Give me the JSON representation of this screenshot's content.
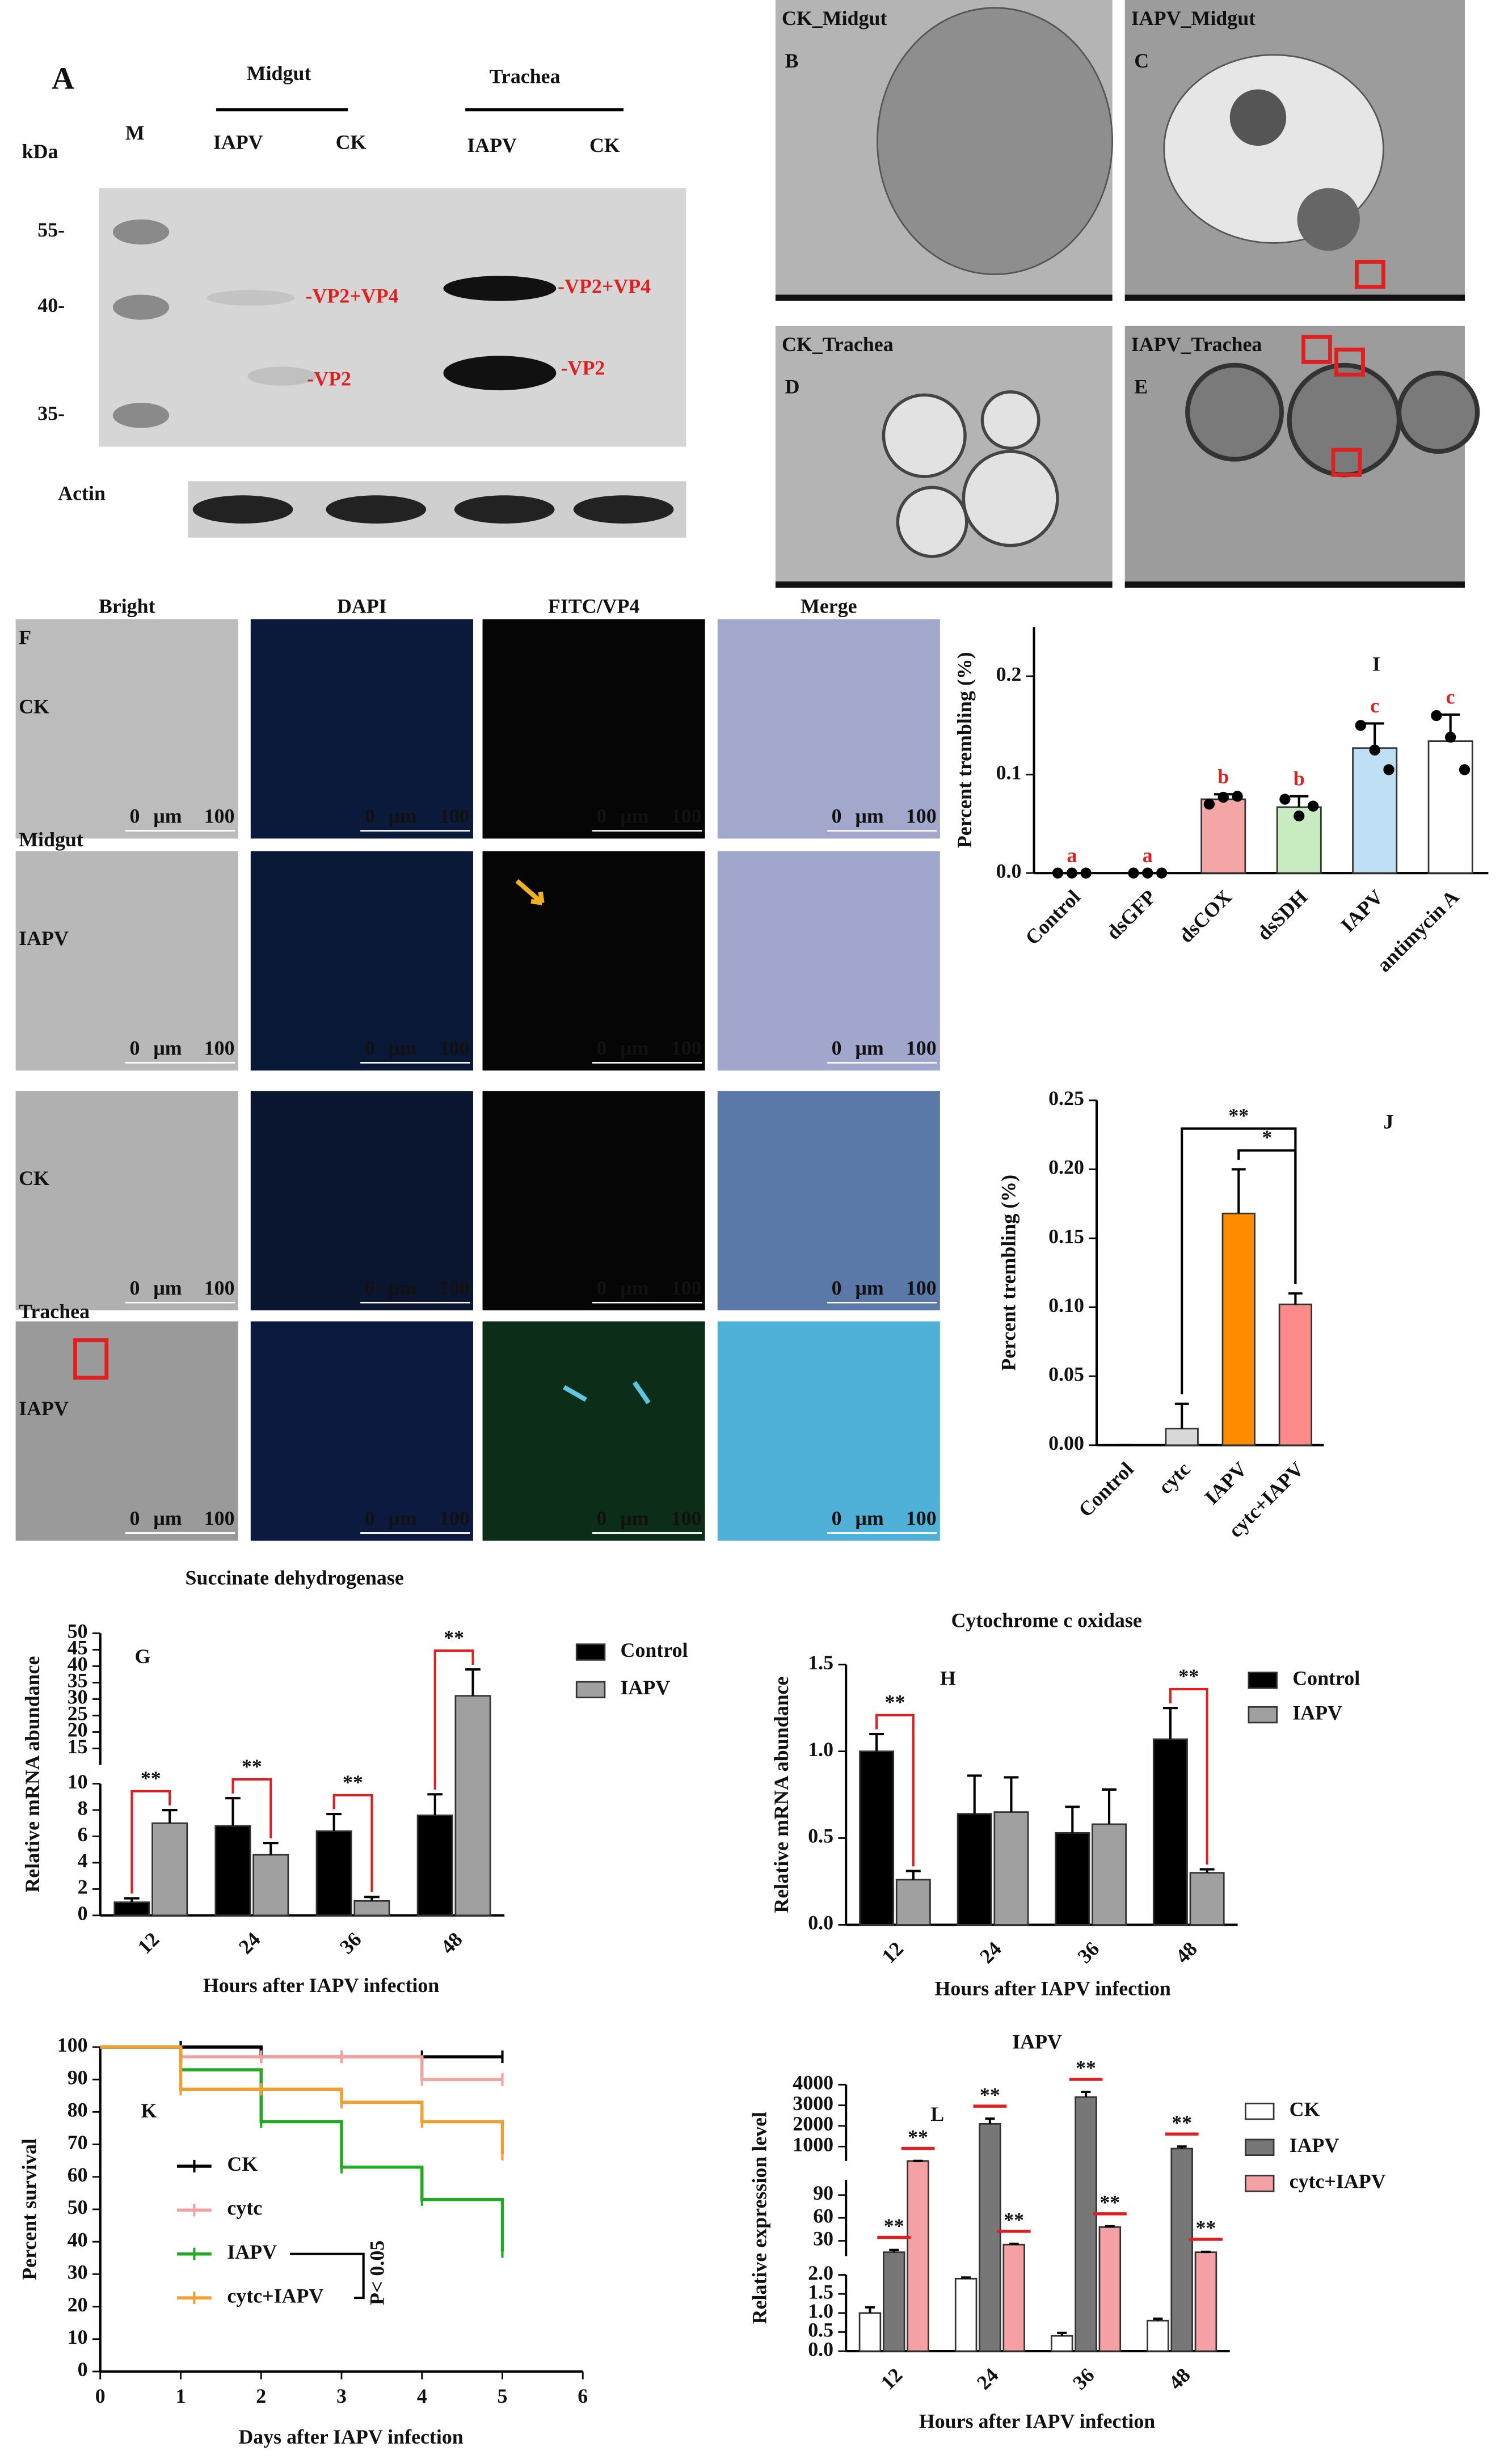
{
  "panels": {
    "A": {
      "letter": "A",
      "kda": "kDa",
      "marker": "M",
      "groups": [
        {
          "name": "Midgut",
          "lanes": [
            "IAPV",
            "CK"
          ]
        },
        {
          "name": "Trachea",
          "lanes": [
            "IAPV",
            "CK"
          ]
        }
      ],
      "sizes": [
        "55-",
        "40-",
        "35-"
      ],
      "bands": [
        "-VP2+VP4",
        "-VP2",
        "-VP2+VP4",
        "-VP2"
      ],
      "loading": "Actin"
    },
    "tem": [
      {
        "title": "CK_Midgut",
        "letter": "B"
      },
      {
        "title": "IAPV_Midgut",
        "letter": "C"
      },
      {
        "title": "CK_Trachea",
        "letter": "D"
      },
      {
        "title": "IAPV_Trachea",
        "letter": "E"
      }
    ],
    "F": {
      "letter": "F",
      "columns": [
        "Bright",
        "DAPI",
        "FITC/VP4",
        "Merge"
      ],
      "tissues": [
        "Midgut",
        "Trachea"
      ],
      "rows": [
        "CK",
        "IAPV",
        "CK",
        "IAPV"
      ],
      "scale": {
        "start": "0",
        "unit": "μm",
        "end": "100"
      }
    }
  },
  "chart_data": [
    {
      "type": "bar",
      "panel": "I",
      "categories": [
        "Control",
        "dsGFP",
        "dsCOX",
        "dsSDH",
        "IAPV",
        "antimycin A"
      ],
      "values": [
        0,
        0,
        0.075,
        0.067,
        0.127,
        0.134
      ],
      "errors": [
        0,
        0,
        0.005,
        0.011,
        0.025,
        0.027
      ],
      "points": [
        [
          0,
          0,
          0
        ],
        [
          0,
          0,
          0
        ],
        [
          0.07,
          0.077,
          0.078
        ],
        [
          0.075,
          0.058,
          0.068
        ],
        [
          0.15,
          0.125,
          0.105
        ],
        [
          0.16,
          0.138,
          0.105
        ]
      ],
      "labels": [
        "a",
        "a",
        "b",
        "b",
        "c",
        "c"
      ],
      "colors": [
        "#000000",
        "#000000",
        "#f4a6a6",
        "#c8ecc0",
        "#bfe0f4",
        "#ffffff"
      ],
      "ylabel": "Percent trembling (%)",
      "ylim": [
        0,
        0.25
      ],
      "yticks": [
        {
          "value": 0,
          "label": "0.0"
        },
        {
          "value": 0.1,
          "label": "0.1"
        },
        {
          "value": 0.2,
          "label": "0.2"
        }
      ]
    },
    {
      "type": "bar",
      "panel": "J",
      "categories": [
        "Control",
        "cytc",
        "IAPV",
        "cytc+IAPV"
      ],
      "values": [
        0,
        0.012,
        0.168,
        0.102
      ],
      "errors": [
        0,
        0.018,
        0.032,
        0.008
      ],
      "colors": [
        "#ffffff",
        "#d8d8d8",
        "#ff8c00",
        "#ff8a8a"
      ],
      "ylabel": "Percent trembling (%)",
      "ylim": [
        0,
        0.25
      ],
      "yticks": [
        {
          "value": 0,
          "label": "0.00"
        },
        {
          "value": 0.05,
          "label": "0.05"
        },
        {
          "value": 0.1,
          "label": "0.10"
        },
        {
          "value": 0.15,
          "label": "0.15"
        },
        {
          "value": 0.2,
          "label": "0.20"
        },
        {
          "value": 0.25,
          "label": "0.25"
        }
      ],
      "comparisons": [
        {
          "from": "cytc",
          "to": "cytc+IAPV",
          "label": "**"
        },
        {
          "from": "IAPV",
          "to": "cytc+IAPV",
          "label": "*"
        }
      ]
    },
    {
      "type": "bar",
      "panel": "G",
      "title": "Succinate dehydrogenase",
      "categories": [
        "12",
        "24",
        "36",
        "48"
      ],
      "series": [
        {
          "name": "Control",
          "color": "#000000",
          "values": [
            1.0,
            6.8,
            6.4,
            7.6
          ],
          "errors": [
            0.3,
            2.1,
            1.3,
            1.6
          ]
        },
        {
          "name": "IAPV",
          "color": "#a0a0a0",
          "values": [
            7.0,
            4.6,
            1.1,
            31
          ],
          "errors": [
            1.0,
            0.9,
            0.3,
            8
          ]
        }
      ],
      "significance": [
        "**",
        "**",
        "**",
        "**"
      ],
      "xlabel": "Hours  after  IAPV infection",
      "ylabel": "Relative mRNA abundance",
      "ylim": [
        0,
        50
      ],
      "ysegments": [
        [
          0,
          10
        ],
        [
          10,
          50
        ]
      ],
      "yticks": [
        0,
        2,
        4,
        6,
        8,
        10,
        15,
        20,
        25,
        30,
        35,
        40,
        45,
        50
      ]
    },
    {
      "type": "bar",
      "panel": "H",
      "title": "Cytochrome c oxidase",
      "categories": [
        "12",
        "24",
        "36",
        "48"
      ],
      "series": [
        {
          "name": "Control",
          "color": "#000000",
          "values": [
            1.0,
            0.64,
            0.53,
            1.07
          ],
          "errors": [
            0.1,
            0.22,
            0.15,
            0.18
          ]
        },
        {
          "name": "IAPV",
          "color": "#a0a0a0",
          "values": [
            0.26,
            0.65,
            0.58,
            0.3
          ],
          "errors": [
            0.05,
            0.2,
            0.2,
            0.02
          ]
        }
      ],
      "significance": [
        "**",
        null,
        null,
        "**"
      ],
      "xlabel": "Hours  after  IAPV infection",
      "ylabel": "Relative mRNA abundance",
      "ylim": [
        0,
        1.5
      ],
      "yticks": [
        {
          "value": 0,
          "label": "0.0"
        },
        {
          "value": 0.5,
          "label": "0.5"
        },
        {
          "value": 1,
          "label": "1.0"
        },
        {
          "value": 1.5,
          "label": "1.5"
        }
      ]
    },
    {
      "type": "line",
      "panel": "K",
      "step": true,
      "x": [
        0,
        1,
        2,
        3,
        4,
        5
      ],
      "series": [
        {
          "name": "CK",
          "color": "#000000",
          "values": [
            100,
            100,
            97,
            97,
            97,
            97
          ]
        },
        {
          "name": "cytc",
          "color": "#f4a0a0",
          "values": [
            100,
            97,
            97,
            97,
            90,
            90
          ]
        },
        {
          "name": "IAPV",
          "color": "#22aa22",
          "values": [
            100,
            93,
            77,
            63,
            53,
            37
          ]
        },
        {
          "name": "cytc+IAPV",
          "color": "#f0a030",
          "values": [
            100,
            87,
            87,
            83,
            77,
            67
          ]
        }
      ],
      "annotation": "P< 0.05",
      "xlabel": "Days after IAPV infection",
      "ylabel": "Percent survival",
      "xlim": [
        0,
        6
      ],
      "xticks": [
        0,
        1,
        2,
        3,
        4,
        5,
        6
      ],
      "ylim": [
        0,
        100
      ],
      "yticks": [
        0,
        10,
        20,
        30,
        40,
        50,
        60,
        70,
        80,
        90,
        100
      ]
    },
    {
      "type": "bar",
      "panel": "L",
      "title": "IAPV",
      "categories": [
        "12",
        "24",
        "36",
        "48"
      ],
      "series": [
        {
          "name": "CK",
          "color": "#ffffff",
          "values": [
            1.0,
            1.9,
            0.4,
            0.8
          ],
          "errors": [
            0.15,
            0.03,
            0.08,
            0.05
          ]
        },
        {
          "name": "IAPV",
          "color": "#777777",
          "values": [
            15,
            2100,
            3400,
            900
          ],
          "errors": [
            3,
            250,
            250,
            100
          ]
        },
        {
          "name": "cytc+IAPV",
          "color": "#f4a0a4",
          "values": [
            300,
            25,
            48,
            15
          ],
          "errors": [
            0,
            1,
            1,
            0.5
          ]
        }
      ],
      "significance": [
        [
          "**",
          "**"
        ],
        [
          "**",
          "**"
        ],
        [
          "**",
          "**"
        ],
        [
          "**",
          "**"
        ]
      ],
      "xlabel": "Hours after IAPV infection",
      "ylabel": "Relative expression level",
      "ylim": [
        0,
        4000
      ],
      "ysegments": [
        [
          0,
          2
        ],
        [
          10,
          110
        ],
        [
          300,
          4000
        ]
      ],
      "yticks": [
        {
          "value": 0,
          "label": "0.0"
        },
        {
          "value": 0.5,
          "label": "0.5"
        },
        {
          "value": 1,
          "label": "1.0"
        },
        {
          "value": 1.5,
          "label": "1.5"
        },
        {
          "value": 2,
          "label": "2.0"
        },
        30,
        60,
        90,
        1000,
        2000,
        3000,
        4000
      ]
    }
  ]
}
